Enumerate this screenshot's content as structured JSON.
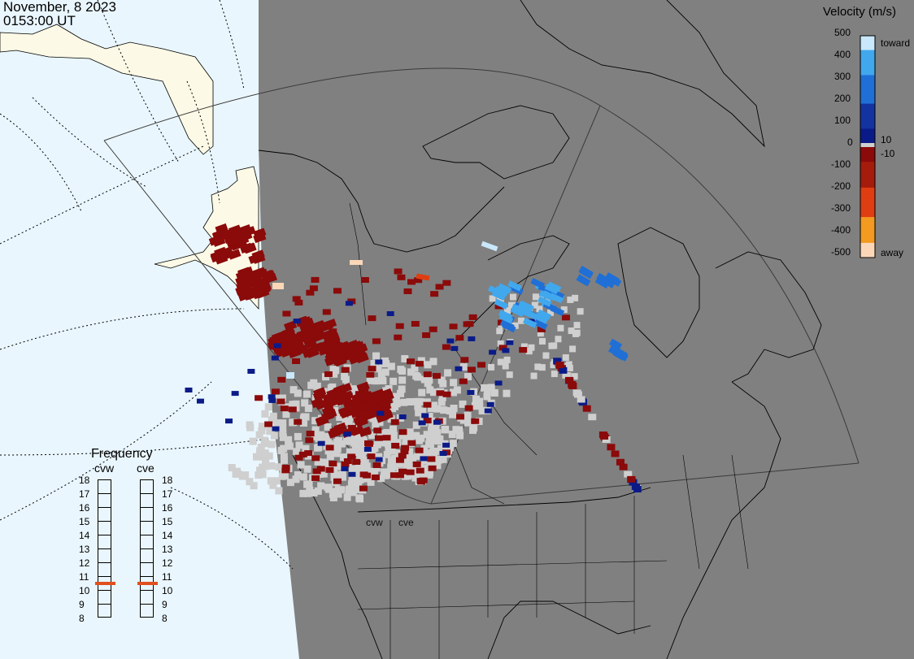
{
  "header": {
    "date": "November, 8 2023",
    "time": "0153:00 UT"
  },
  "legend": {
    "title": "Velocity (m/s)",
    "ticks": [
      "500",
      "400",
      "300",
      "200",
      "100",
      "10",
      "0",
      "-10",
      "-100",
      "-200",
      "-300",
      "-400",
      "-500"
    ],
    "toward_label": "toward",
    "away_label": "away"
  },
  "frequency": {
    "title": "Frequency",
    "radars": [
      "cvw",
      "cve"
    ],
    "scale": [
      "18",
      "17",
      "16",
      "15",
      "14",
      "13",
      "12",
      "11",
      "10",
      "9",
      "8"
    ],
    "selected": {
      "cvw": 11,
      "cve": 11
    }
  },
  "radar_labels": [
    "cvw",
    "cve"
  ],
  "colors": {
    "ocean": "#e9f6fd",
    "land_day": "#fcf9e6",
    "night": "#808080",
    "near_zero": "#cfcfcf",
    "toward_strong": "#c9e8fb",
    "toward_high": "#41a8ee",
    "toward_mid": "#1f6fd6",
    "toward_low": "#1334a0",
    "toward_min": "#0a1b88",
    "away_min": "#8b0a0a",
    "away_low": "#a51c0c",
    "away_mid": "#df3d12",
    "away_high": "#f39a20",
    "away_strong": "#fbd7b8"
  }
}
